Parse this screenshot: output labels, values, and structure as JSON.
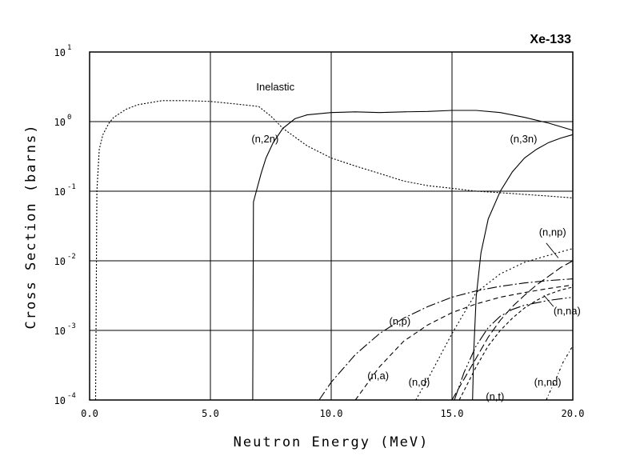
{
  "chart_data": {
    "type": "line",
    "title": "Xe-133",
    "xlabel": "Neutron Energy (MeV)",
    "ylabel": "Cross Section (barns)",
    "xlim": [
      0,
      20
    ],
    "ylim_log10": [
      -4,
      1
    ],
    "y_scale": "log",
    "grid": true,
    "x_ticks": [
      {
        "value": 0,
        "label": "0.0"
      },
      {
        "value": 5,
        "label": "5.0"
      },
      {
        "value": 10,
        "label": "10.0"
      },
      {
        "value": 15,
        "label": "15.0"
      },
      {
        "value": 20,
        "label": "20.0"
      }
    ],
    "y_ticks": [
      {
        "exp": 1,
        "base": "10",
        "power": "1"
      },
      {
        "exp": 0,
        "base": "10",
        "power": "0"
      },
      {
        "exp": -1,
        "base": "10",
        "power": "-1"
      },
      {
        "exp": -2,
        "base": "10",
        "power": "-2"
      },
      {
        "exp": -3,
        "base": "10",
        "power": "-3"
      },
      {
        "exp": -4,
        "base": "10",
        "power": "-4"
      }
    ],
    "series": [
      {
        "name": "Inelastic",
        "dash": "2,2",
        "x": [
          0.25,
          0.3,
          0.4,
          0.55,
          0.8,
          1.0,
          1.5,
          2.0,
          3.0,
          4.0,
          5.0,
          6.0,
          7.0,
          7.5,
          8.0,
          9.0,
          10.0,
          11.0,
          12.0,
          13.0,
          14.0,
          15.0,
          16.0,
          17.0,
          18.0,
          19.0,
          20.0
        ],
        "y": [
          0.0001,
          0.1,
          0.4,
          0.65,
          0.95,
          1.15,
          1.5,
          1.75,
          2.0,
          2.0,
          1.95,
          1.8,
          1.65,
          1.2,
          0.8,
          0.45,
          0.3,
          0.23,
          0.18,
          0.14,
          0.12,
          0.11,
          0.1,
          0.095,
          0.09,
          0.085,
          0.08
        ]
      },
      {
        "name": "(n,2n)",
        "dash": "",
        "x": [
          6.75,
          6.78,
          6.9,
          7.1,
          7.3,
          7.6,
          8.0,
          8.5,
          9.0,
          10.0,
          11.0,
          12.0,
          13.0,
          14.0,
          15.0,
          16.0,
          17.0,
          18.0,
          19.0,
          20.0
        ],
        "y": [
          0.0001,
          0.07,
          0.1,
          0.18,
          0.3,
          0.5,
          0.8,
          1.1,
          1.25,
          1.35,
          1.38,
          1.35,
          1.38,
          1.4,
          1.45,
          1.45,
          1.35,
          1.15,
          0.95,
          0.75
        ]
      },
      {
        "name": "(n,3n)",
        "dash": "",
        "x": [
          15.85,
          15.9,
          16.0,
          16.2,
          16.5,
          17.0,
          17.5,
          18.0,
          18.5,
          19.0,
          19.5,
          20.0
        ],
        "y": [
          0.0001,
          0.0005,
          0.003,
          0.013,
          0.04,
          0.1,
          0.19,
          0.3,
          0.4,
          0.5,
          0.58,
          0.65
        ]
      },
      {
        "name": "(n,p)",
        "dash": "12,3,2,3",
        "x": [
          9.5,
          10.0,
          11.0,
          12.0,
          13.0,
          14.0,
          15.0,
          16.0,
          17.0,
          18.0,
          19.0,
          20.0
        ],
        "y": [
          0.0001,
          0.00018,
          0.00045,
          0.0009,
          0.0015,
          0.0022,
          0.003,
          0.0037,
          0.0043,
          0.0048,
          0.0052,
          0.0055
        ]
      },
      {
        "name": "(n,a)",
        "dash": "6,4",
        "x": [
          11.0,
          12.0,
          13.0,
          14.0,
          15.0,
          16.0,
          17.0,
          18.0,
          19.0,
          20.0
        ],
        "y": [
          0.0001,
          0.0003,
          0.0007,
          0.0012,
          0.0018,
          0.0024,
          0.003,
          0.0035,
          0.004,
          0.0045
        ]
      },
      {
        "name": "(n,d)",
        "dash": "2,3",
        "x": [
          13.5,
          14.0,
          15.0,
          16.0,
          17.0,
          18.0,
          19.0,
          20.0
        ],
        "y": [
          0.0001,
          0.0002,
          0.0009,
          0.0035,
          0.0065,
          0.0095,
          0.012,
          0.015
        ]
      },
      {
        "name": "(n,t)",
        "dash": "14,3,2,3,2,3",
        "x": [
          15.1,
          15.5,
          16.0,
          16.5,
          17.0,
          17.5,
          18.0,
          19.0,
          20.0
        ],
        "y": [
          0.0001,
          0.00025,
          0.0006,
          0.0011,
          0.0016,
          0.002,
          0.0023,
          0.0027,
          0.003
        ]
      },
      {
        "name": "(n,np)",
        "dash": "10,4",
        "x": [
          15.0,
          15.5,
          16.0,
          16.5,
          17.0,
          17.5,
          18.0,
          18.5,
          19.0,
          19.5,
          20.0
        ],
        "y": [
          0.0001,
          0.0002,
          0.0004,
          0.0008,
          0.0014,
          0.0022,
          0.0032,
          0.0045,
          0.006,
          0.008,
          0.01
        ]
      },
      {
        "name": "(n,na)",
        "dash": "4,3",
        "x": [
          15.3,
          16.0,
          16.5,
          17.0,
          17.5,
          18.0,
          18.5,
          19.0,
          19.5,
          20.0
        ],
        "y": [
          0.0001,
          0.0003,
          0.0006,
          0.001,
          0.0015,
          0.0021,
          0.0027,
          0.0033,
          0.0038,
          0.0042
        ]
      },
      {
        "name": "(n,nd)",
        "dash": "3,3,1,3",
        "x": [
          18.9,
          19.0,
          19.3,
          19.6,
          20.0
        ],
        "y": [
          0.0001,
          0.00012,
          0.0002,
          0.00035,
          0.0006
        ]
      }
    ],
    "annotations": [
      {
        "label": "Inelastic",
        "x": 6.9,
        "y": 2.8
      },
      {
        "label": "(n,2n)",
        "x": 6.7,
        "y": 0.5
      },
      {
        "label": "(n,3n)",
        "x": 17.4,
        "y": 0.5
      },
      {
        "label": "(n,np)",
        "x": 18.6,
        "y": 0.023
      },
      {
        "label": "(n,p)",
        "x": 12.4,
        "y": 0.0012
      },
      {
        "label": "(n,na)",
        "x": 19.2,
        "y": 0.0017
      },
      {
        "label": "(n,a)",
        "x": 11.5,
        "y": 0.0002
      },
      {
        "label": "(n,d)",
        "x": 13.2,
        "y": 0.00016
      },
      {
        "label": "(n,t)",
        "x": 16.4,
        "y": 0.0001
      },
      {
        "label": "(n,nd)",
        "x": 18.4,
        "y": 0.00016
      }
    ],
    "leaders": [
      {
        "label": "(n,np)",
        "from": [
          18.9,
          0.018
        ],
        "to": [
          19.4,
          0.011
        ]
      },
      {
        "label": "(n,na)",
        "from": [
          19.2,
          0.0022
        ],
        "to": [
          18.8,
          0.0032
        ]
      }
    ]
  }
}
